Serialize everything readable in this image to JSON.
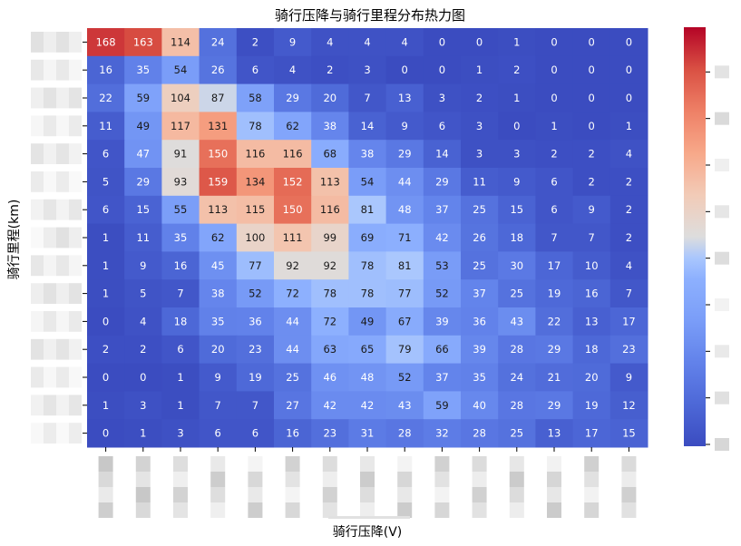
{
  "chart_data": {
    "type": "heatmap",
    "title": "骑行压降与骑行里程分布热力图",
    "xlabel": "骑行压降(V)",
    "ylabel": "骑行里程(km)",
    "colormap": "coolwarm",
    "colors": {
      "low": "#3b4cc0",
      "mid": "#dddddd",
      "high": "#b40426"
    },
    "vmin": 0,
    "vmax": 180,
    "x_tick_labels_legible": false,
    "y_tick_labels_legible": false,
    "colorbar_tick_labels_legible": false,
    "rows": 15,
    "cols": 15,
    "values": [
      [
        168,
        163,
        114,
        24,
        2,
        9,
        4,
        4,
        4,
        0,
        0,
        1,
        0,
        0,
        0
      ],
      [
        16,
        35,
        54,
        26,
        6,
        4,
        2,
        3,
        0,
        0,
        1,
        2,
        0,
        0,
        0
      ],
      [
        22,
        59,
        104,
        87,
        58,
        29,
        20,
        7,
        13,
        3,
        2,
        1,
        0,
        0,
        0
      ],
      [
        11,
        49,
        117,
        131,
        78,
        62,
        38,
        14,
        9,
        6,
        3,
        0,
        1,
        0,
        1
      ],
      [
        6,
        47,
        91,
        150,
        116,
        116,
        68,
        38,
        29,
        14,
        3,
        3,
        2,
        2,
        4
      ],
      [
        5,
        29,
        93,
        159,
        134,
        152,
        113,
        54,
        44,
        29,
        11,
        9,
        6,
        2,
        2
      ],
      [
        6,
        15,
        55,
        113,
        115,
        150,
        116,
        81,
        48,
        37,
        25,
        15,
        6,
        9,
        2
      ],
      [
        1,
        11,
        35,
        62,
        100,
        111,
        99,
        69,
        71,
        42,
        26,
        18,
        7,
        7,
        2
      ],
      [
        1,
        9,
        16,
        45,
        77,
        92,
        92,
        78,
        81,
        53,
        25,
        30,
        17,
        10,
        4
      ],
      [
        1,
        5,
        7,
        38,
        52,
        72,
        78,
        78,
        77,
        52,
        37,
        25,
        19,
        16,
        7
      ],
      [
        0,
        4,
        18,
        35,
        36,
        44,
        72,
        49,
        67,
        39,
        36,
        43,
        22,
        13,
        17
      ],
      [
        2,
        2,
        6,
        20,
        23,
        44,
        63,
        65,
        79,
        66,
        39,
        28,
        29,
        18,
        23
      ],
      [
        0,
        0,
        1,
        9,
        19,
        25,
        46,
        48,
        52,
        37,
        35,
        24,
        21,
        20,
        9
      ],
      [
        1,
        3,
        1,
        7,
        7,
        27,
        42,
        42,
        43,
        59,
        40,
        28,
        29,
        19,
        12
      ],
      [
        0,
        1,
        3,
        6,
        6,
        16,
        23,
        31,
        28,
        32,
        28,
        25,
        13,
        17,
        15
      ]
    ]
  }
}
